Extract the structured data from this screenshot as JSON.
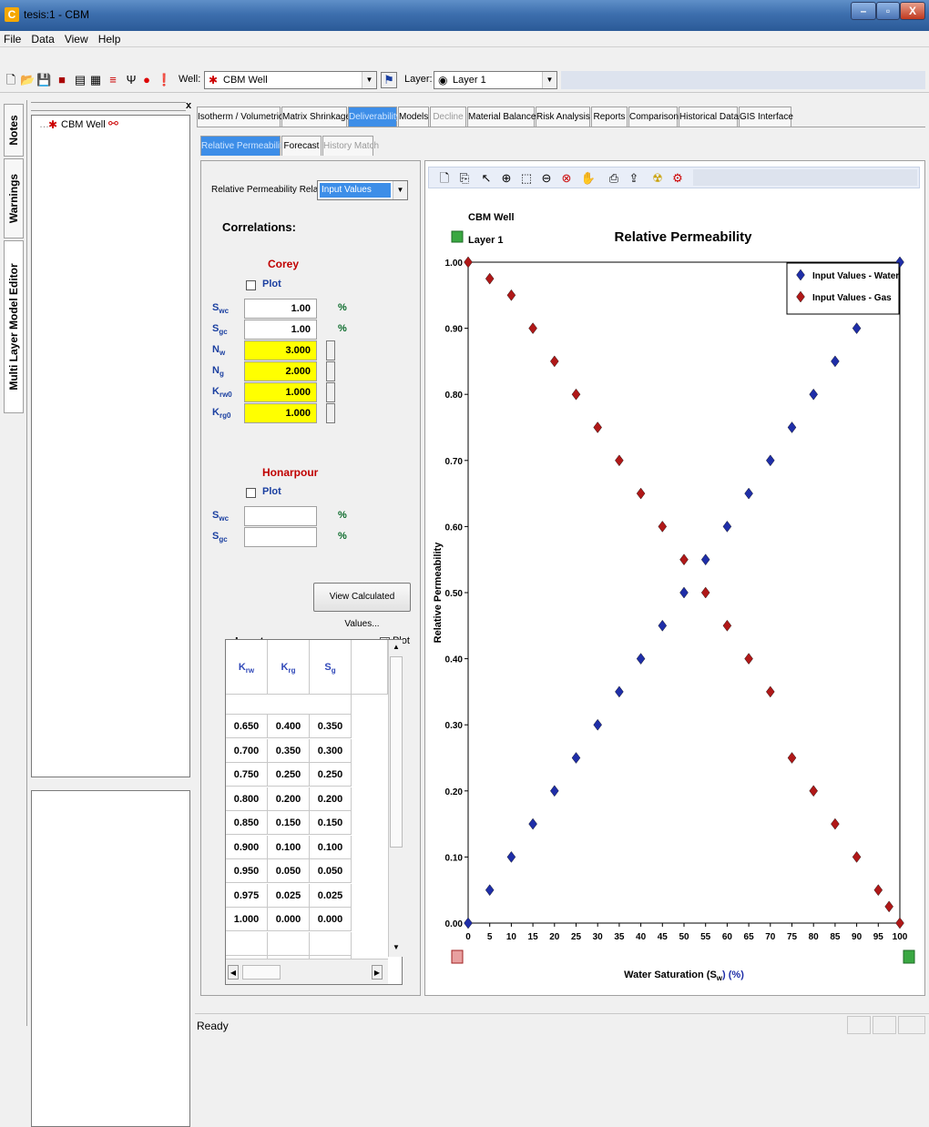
{
  "window": {
    "title": "tesis:1 - CBM",
    "app_icon": "C",
    "min": "–",
    "max": "▫",
    "close": "X"
  },
  "menu": [
    "File",
    "Data",
    "View",
    "Help"
  ],
  "toolbar": {
    "well_label": "Well:",
    "well_value": "CBM Well",
    "layer_label": "Layer:",
    "layer_value": "Layer 1"
  },
  "side_tabs": [
    "Notes",
    "Warnings",
    "Multi Layer Model Editor"
  ],
  "tree": {
    "close": "x",
    "item": "CBM Well"
  },
  "main_tabs": [
    "Isotherm / Volumetrics",
    "Matrix Shrinkage",
    "Deliverability",
    "Models",
    "Decline",
    "Material Balance",
    "Risk Analysis",
    "Reports",
    "Comparison",
    "Historical Data",
    "GIS Interface"
  ],
  "sub_tabs": [
    "Relative Permeability",
    "Forecast",
    "History Match"
  ],
  "form": {
    "relation_label": "Relative Permeability Relation:",
    "relation_value": "Input Values",
    "correlations": "Correlations:",
    "corey": {
      "title": "Corey",
      "plot": "Plot",
      "rows": [
        {
          "name": "S",
          "sub": "wc",
          "value": "1.00",
          "unit": "%"
        },
        {
          "name": "S",
          "sub": "gc",
          "value": "1.00",
          "unit": "%"
        },
        {
          "name": "N",
          "sub": "w",
          "value": "3.000",
          "unit": ""
        },
        {
          "name": "N",
          "sub": "g",
          "value": "2.000",
          "unit": ""
        },
        {
          "name": "K",
          "sub": "rw0",
          "value": "1.000",
          "unit": ""
        },
        {
          "name": "K",
          "sub": "rg0",
          "value": "1.000",
          "unit": ""
        }
      ]
    },
    "honarpour": {
      "title": "Honarpour",
      "plot": "Plot",
      "rows": [
        {
          "name": "S",
          "sub": "wc",
          "value": "",
          "unit": "%"
        },
        {
          "name": "S",
          "sub": "gc",
          "value": "",
          "unit": "%"
        }
      ]
    },
    "view_button": "View Calculated Values...",
    "input_label": "Input:",
    "input_plot": "Plot",
    "grid": {
      "headers": [
        {
          "name": "K",
          "sub": "rw"
        },
        {
          "name": "K",
          "sub": "rg"
        },
        {
          "name": "S",
          "sub": "g"
        }
      ],
      "rows": [
        [
          "0.650",
          "0.400",
          "0.350"
        ],
        [
          "0.700",
          "0.350",
          "0.300"
        ],
        [
          "0.750",
          "0.250",
          "0.250"
        ],
        [
          "0.800",
          "0.200",
          "0.200"
        ],
        [
          "0.850",
          "0.150",
          "0.150"
        ],
        [
          "0.900",
          "0.100",
          "0.100"
        ],
        [
          "0.950",
          "0.050",
          "0.050"
        ],
        [
          "0.975",
          "0.025",
          "0.025"
        ],
        [
          "1.000",
          "0.000",
          "0.000"
        ]
      ]
    }
  },
  "chart_data": {
    "type": "scatter",
    "title": "Relative Permeability",
    "subtitle_well": "CBM Well",
    "subtitle_layer": "Layer 1",
    "xlabel": "Water Saturation (S",
    "xlabel_sub": "w",
    "xlabel_end": ") (%)",
    "ylabel": "Relative Permeability",
    "xlim": [
      0,
      100
    ],
    "ylim": [
      0,
      1
    ],
    "x_ticks": [
      "0",
      "5",
      "10",
      "15",
      "20",
      "25",
      "30",
      "35",
      "40",
      "45",
      "50",
      "55",
      "60",
      "65",
      "70",
      "75",
      "80",
      "85",
      "90",
      "95",
      "100"
    ],
    "y_ticks": [
      "0.00",
      "0.10",
      "0.20",
      "0.30",
      "0.40",
      "0.50",
      "0.60",
      "0.70",
      "0.80",
      "0.90",
      "1.00"
    ],
    "legend_position": "top-right",
    "series": [
      {
        "name": "Input Values - Water",
        "color": "#1f2ea8",
        "x": [
          0,
          5,
          10,
          15,
          20,
          25,
          30,
          35,
          40,
          45,
          50,
          55,
          60,
          65,
          70,
          75,
          80,
          85,
          90,
          100
        ],
        "y": [
          0,
          0.05,
          0.1,
          0.15,
          0.2,
          0.25,
          0.3,
          0.35,
          0.4,
          0.45,
          0.5,
          0.55,
          0.6,
          0.65,
          0.7,
          0.75,
          0.8,
          0.85,
          0.9,
          1.0
        ]
      },
      {
        "name": "Input Values - Gas",
        "color": "#b01818",
        "x": [
          0,
          5,
          10,
          15,
          20,
          25,
          30,
          35,
          40,
          45,
          50,
          55,
          60,
          65,
          70,
          75,
          80,
          85,
          90,
          95,
          97.5,
          100
        ],
        "y": [
          1.0,
          0.975,
          0.95,
          0.9,
          0.85,
          0.8,
          0.75,
          0.7,
          0.65,
          0.6,
          0.55,
          0.5,
          0.45,
          0.4,
          0.35,
          0.25,
          0.2,
          0.15,
          0.1,
          0.05,
          0.025,
          0
        ]
      }
    ]
  },
  "status": {
    "text": "Ready"
  }
}
